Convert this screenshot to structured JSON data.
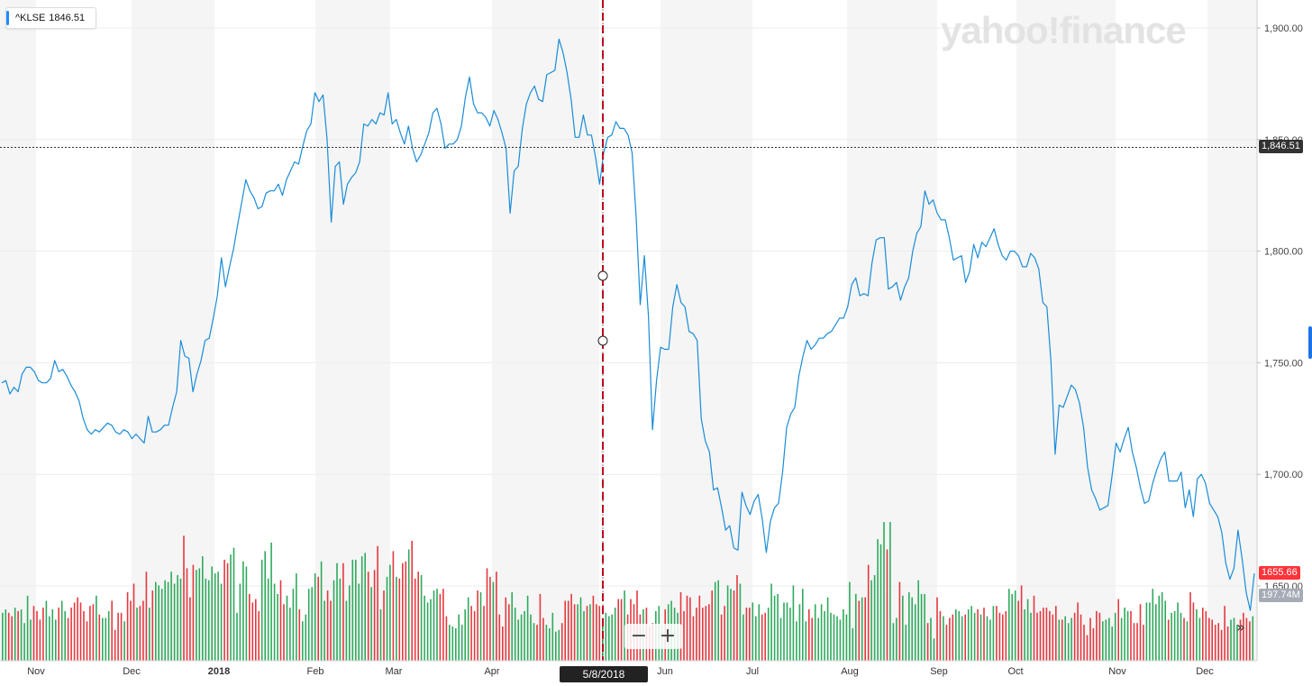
{
  "ticker": {
    "symbol": "^KLSE",
    "price": "1846.51"
  },
  "watermark": "yahoo!finance",
  "price_tags": {
    "current": "1,846.51",
    "last": "1655.66",
    "volume": "197.74M"
  },
  "crosshair_date": "5/8/2018",
  "zoom": {
    "minus": "−",
    "plus": "+"
  },
  "expand_icon": "»",
  "colors": {
    "line": "#1a8cd8",
    "up": "#2eaa5c",
    "down": "#e5383f",
    "crosshair": "#d0021b"
  },
  "chart_data": {
    "type": "line",
    "series": [
      {
        "values": [
          1741,
          1742,
          1736,
          1739,
          1737,
          1745,
          1748,
          1748,
          1746,
          1742,
          1741,
          1741,
          1743,
          1751,
          1746,
          1747,
          1744,
          1740,
          1737,
          1733,
          1725,
          1720,
          1718,
          1720,
          1719,
          1721,
          1723,
          1722,
          1719,
          1718,
          1720,
          1719,
          1716,
          1718,
          1716,
          1714,
          1726,
          1719,
          1719,
          1720,
          1722,
          1722,
          1730,
          1737,
          1760,
          1753,
          1752,
          1737,
          1745,
          1751,
          1760,
          1761,
          1770,
          1780,
          1797,
          1784,
          1793,
          1801,
          1812,
          1822,
          1832,
          1827,
          1824,
          1819,
          1820,
          1826,
          1827,
          1827,
          1830,
          1825,
          1832,
          1836,
          1840,
          1839,
          1847,
          1854,
          1857,
          1871,
          1867,
          1870,
          1850,
          1813,
          1838,
          1840,
          1821,
          1830,
          1833,
          1835,
          1840,
          1857,
          1856,
          1859,
          1857,
          1862,
          1861,
          1871,
          1857,
          1859,
          1853,
          1848,
          1856,
          1846,
          1840,
          1843,
          1848,
          1853,
          1862,
          1864,
          1857,
          1846,
          1848,
          1848,
          1850,
          1856,
          1869,
          1878,
          1866,
          1862,
          1862,
          1860,
          1856,
          1863,
          1859,
          1853,
          1846,
          1817,
          1836,
          1838,
          1855,
          1866,
          1871,
          1874,
          1868,
          1867,
          1879,
          1880,
          1881,
          1895,
          1889,
          1880,
          1868,
          1851,
          1851,
          1861,
          1852,
          1852,
          1842,
          1830,
          1844,
          1851,
          1852,
          1858,
          1855,
          1855,
          1852,
          1844,
          1815,
          1776,
          1798,
          1771,
          1720,
          1742,
          1757,
          1756,
          1756,
          1775,
          1785,
          1777,
          1775,
          1764,
          1763,
          1760,
          1725,
          1715,
          1710,
          1693,
          1694,
          1685,
          1675,
          1677,
          1667,
          1666,
          1692,
          1686,
          1682,
          1688,
          1691,
          1680,
          1665,
          1679,
          1685,
          1687,
          1701,
          1721,
          1727,
          1730,
          1744,
          1753,
          1760,
          1756,
          1758,
          1761,
          1761,
          1763,
          1764,
          1767,
          1770,
          1770,
          1775,
          1785,
          1788,
          1780,
          1781,
          1780,
          1795,
          1805,
          1806,
          1806,
          1783,
          1784,
          1786,
          1778,
          1784,
          1788,
          1800,
          1808,
          1811,
          1827,
          1821,
          1823,
          1817,
          1814,
          1814,
          1806,
          1796,
          1797,
          1798,
          1786,
          1791,
          1803,
          1797,
          1804,
          1802,
          1806,
          1810,
          1803,
          1798,
          1796,
          1800,
          1800,
          1798,
          1793,
          1793,
          1799,
          1797,
          1792,
          1777,
          1775,
          1750,
          1709,
          1731,
          1730,
          1735,
          1740,
          1738,
          1732,
          1721,
          1703,
          1693,
          1689,
          1684,
          1685,
          1686,
          1699,
          1714,
          1710,
          1716,
          1721,
          1710,
          1703,
          1694,
          1687,
          1688,
          1696,
          1702,
          1707,
          1710,
          1697,
          1697,
          1697,
          1701,
          1685,
          1693,
          1681,
          1698,
          1700,
          1696,
          1687,
          1684,
          1681,
          1674,
          1660,
          1653,
          1658,
          1675,
          1662,
          1647,
          1639,
          1655.66
        ]
      }
    ],
    "volume": {
      "values": [
        28,
        30,
        28,
        26,
        31,
        29,
        30,
        22,
        38,
        24,
        32,
        29,
        24,
        31,
        35,
        26,
        30,
        24,
        31,
        35,
        29,
        25,
        31,
        34,
        37,
        34,
        29,
        23,
        32,
        33,
        38,
        27,
        25,
        25,
        29,
        35,
        18,
        28,
        28,
        23,
        40,
        35,
        45,
        31,
        32,
        35,
        52,
        31,
        41,
        46,
        44,
        42,
        47,
        46,
        52,
        45,
        50,
        48,
        73,
        54,
        37,
        56,
        53,
        54,
        61,
        48,
        47,
        55,
        51,
        52,
        45,
        59,
        57,
        62,
        66,
        28,
        45,
        58,
        55,
        39,
        34,
        36,
        29,
        59,
        64,
        48,
        69,
        45,
        39,
        47,
        33,
        38,
        31,
        42,
        51,
        30,
        23,
        27,
        42,
        43,
        51,
        49,
        58,
        35,
        41,
        35,
        47,
        57,
        48,
        57,
        35,
        44,
        59,
        59,
        45,
        61,
        63,
        52,
        43,
        53,
        67,
        30,
        41,
        49,
        56,
        64,
        49,
        48,
        57,
        58,
        65,
        70,
        48,
        52,
        50,
        38,
        34,
        36,
        41,
        42,
        39,
        42,
        26,
        21,
        20,
        19,
        27,
        21,
        30,
        37,
        32,
        29,
        41,
        40,
        32,
        54,
        49,
        46,
        52,
        27,
        20,
        37,
        33,
        40,
        31,
        24,
        27,
        29,
        38,
        27,
        22,
        21,
        39,
        25,
        21,
        19,
        28,
        17,
        18,
        22,
        35,
        35,
        39,
        33,
        33,
        37,
        29,
        32,
        33,
        38,
        33,
        32,
        24,
        28,
        26,
        27,
        31,
        36,
        36,
        41,
        27,
        36,
        33,
        41,
        27,
        30,
        31,
        20,
        22,
        29,
        32,
        21,
        30,
        33,
        35,
        31,
        28,
        40,
        29,
        38,
        37,
        26,
        31,
        38,
        31,
        32,
        33,
        41,
        46,
        47,
        27,
        32,
        44,
        42,
        41,
        50,
        45,
        27,
        31,
        31,
        34,
        26,
        33,
        27,
        28,
        31,
        45,
        38,
        39,
        25,
        34,
        34,
        31,
        44,
        23,
        33,
        42,
        23,
        30,
        25,
        33,
        25,
        33,
        29,
        37,
        28,
        27,
        26,
        24,
        30,
        27,
        46,
        19,
        39,
        35,
        37,
        37,
        56,
        47,
        50,
        71,
        68,
        81,
        65,
        81,
        22,
        25,
        46,
        38,
        21,
        40,
        37,
        33,
        47,
        39,
        39,
        22,
        25,
        13,
        37,
        29,
        26,
        21,
        25,
        27,
        30,
        29,
        26,
        27,
        30,
        32,
        28,
        30,
        27,
        31,
        26,
        24,
        32,
        32,
        28,
        27,
        29,
        42,
        39,
        41,
        35,
        44,
        30,
        36,
        28,
        38,
        28,
        29,
        31,
        31,
        29,
        27,
        32,
        24,
        24,
        26,
        22,
        25,
        28,
        34,
        27,
        21,
        15,
        25,
        19,
        29,
        28,
        23,
        24,
        25,
        20,
        28,
        36,
        25,
        31,
        29,
        29,
        22,
        22,
        33,
        21,
        34,
        34,
        42,
        33,
        38,
        40,
        35,
        24,
        28,
        29,
        34,
        28,
        25,
        23,
        40,
        34,
        30,
        25,
        31,
        29,
        25,
        24,
        21,
        22,
        18,
        32,
        20,
        24,
        25,
        21,
        24,
        28,
        25,
        23,
        26
      ]
    },
    "x_ticks": [
      "Nov",
      "Dec",
      "2018",
      "Feb",
      "Mar",
      "Apr",
      "Jun",
      "Jul",
      "Aug",
      "Sep",
      "Oct",
      "Nov",
      "Dec"
    ],
    "y_ticks": [
      "1,900.00",
      "1,850.00",
      "1,800.00",
      "1,750.00",
      "1,700.00",
      "1,650.00"
    ],
    "ylim": [
      1625,
      1906
    ],
    "reference_line": 1846.51,
    "grid": "horizontal",
    "legend": "none"
  }
}
